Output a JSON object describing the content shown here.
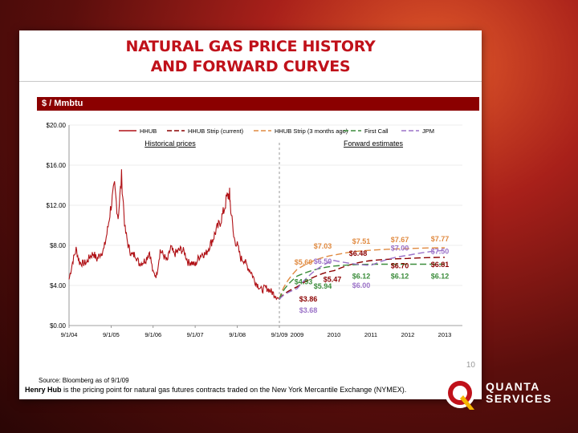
{
  "slide": {
    "title_line1": "NATURAL GAS PRICE HISTORY",
    "title_line2": "AND FORWARD CURVES",
    "unit_label": "$ / Mmbtu",
    "source": "Source: Bloomberg as of 9/1/09",
    "page_number": "10",
    "footnote_bold": "Henry Hub",
    "footnote_rest": " is the pricing point for natural gas futures contracts traded on the New York Mercantile Exchange (NYMEX).",
    "logo": {
      "line1": "QUANTA",
      "line2": "SERVICES"
    }
  },
  "chart_data": {
    "type": "line",
    "ylim": [
      0,
      20
    ],
    "yticks": [
      "$0.00",
      "$4.00",
      "$8.00",
      "$12.00",
      "$16.00",
      "$20.00"
    ],
    "ytick_values": [
      0,
      4,
      8,
      12,
      16,
      20
    ],
    "xticks_history": [
      "9/1/04",
      "9/1/05",
      "9/1/06",
      "9/1/07",
      "9/1/08",
      "9/1/09"
    ],
    "xticks_forward": [
      "2009",
      "2010",
      "2011",
      "2012",
      "2013"
    ],
    "region_labels": {
      "history": "Historical prices",
      "forward": "Forward estimates"
    },
    "legend_position": "top",
    "history": {
      "name": "HHUB",
      "color": "#b01116",
      "points": [
        [
          "9/1/04",
          4.6
        ],
        [
          "10/1/04",
          6.3
        ],
        [
          "11/1/04",
          7.6
        ],
        [
          "12/1/04",
          6.3
        ],
        [
          "1/1/05",
          6.2
        ],
        [
          "2/1/05",
          6.3
        ],
        [
          "3/1/05",
          6.9
        ],
        [
          "4/1/05",
          7.2
        ],
        [
          "5/1/05",
          6.6
        ],
        [
          "6/1/05",
          7.2
        ],
        [
          "7/1/05",
          7.6
        ],
        [
          "8/1/05",
          9.5
        ],
        [
          "9/1/05",
          12.0
        ],
        [
          "10/1/05",
          13.8
        ],
        [
          "11/1/05",
          10.8
        ],
        [
          "12/1/05",
          14.8
        ],
        [
          "1/1/06",
          9.5
        ],
        [
          "2/1/06",
          7.8
        ],
        [
          "3/1/06",
          7.0
        ],
        [
          "4/1/06",
          7.1
        ],
        [
          "5/1/06",
          6.2
        ],
        [
          "6/1/06",
          6.3
        ],
        [
          "7/1/06",
          6.6
        ],
        [
          "8/1/06",
          7.4
        ],
        [
          "9/1/06",
          5.2
        ],
        [
          "10/1/06",
          5.0
        ],
        [
          "11/1/06",
          7.5
        ],
        [
          "12/1/06",
          7.0
        ],
        [
          "1/1/07",
          6.4
        ],
        [
          "2/1/07",
          7.8
        ],
        [
          "3/1/07",
          7.1
        ],
        [
          "4/1/07",
          7.4
        ],
        [
          "5/1/07",
          7.6
        ],
        [
          "6/1/07",
          7.3
        ],
        [
          "7/1/07",
          6.3
        ],
        [
          "8/1/07",
          6.3
        ],
        [
          "9/1/07",
          6.0
        ],
        [
          "10/1/07",
          6.8
        ],
        [
          "11/1/07",
          7.2
        ],
        [
          "12/1/07",
          7.1
        ],
        [
          "1/1/08",
          7.9
        ],
        [
          "2/1/08",
          8.6
        ],
        [
          "3/1/08",
          9.5
        ],
        [
          "4/1/08",
          10.2
        ],
        [
          "5/1/08",
          11.2
        ],
        [
          "6/1/08",
          12.7
        ],
        [
          "6/25/08",
          13.2
        ],
        [
          "7/1/08",
          12.3
        ],
        [
          "8/1/08",
          8.8
        ],
        [
          "9/1/08",
          8.0
        ],
        [
          "10/1/08",
          6.7
        ],
        [
          "11/1/08",
          6.5
        ],
        [
          "12/1/08",
          5.8
        ],
        [
          "1/1/09",
          5.3
        ],
        [
          "2/1/09",
          4.4
        ],
        [
          "3/1/09",
          4.0
        ],
        [
          "4/1/09",
          3.5
        ],
        [
          "5/1/09",
          3.8
        ],
        [
          "6/1/09",
          3.6
        ],
        [
          "7/1/09",
          3.3
        ],
        [
          "8/1/09",
          3.0
        ],
        [
          "9/1/09",
          2.6
        ]
      ]
    },
    "forward_series": [
      {
        "name": "HHUB Strip (current)",
        "color": "#8b0000",
        "dash": "8,4",
        "values": [
          3.86,
          5.47,
          6.48,
          6.7,
          6.81
        ],
        "labels": [
          "$3.86",
          "$5.47",
          "$6.48",
          "$6.70",
          "$6.81"
        ]
      },
      {
        "name": "HHUB Strip (3 months ago)",
        "color": "#e08a40",
        "dash": "8,4",
        "values": [
          5.6,
          7.03,
          7.51,
          7.67,
          7.77
        ],
        "labels": [
          "$5.60",
          "$7.03",
          "$7.51",
          "$7.67",
          "$7.77"
        ]
      },
      {
        "name": "First Call",
        "color": "#3b8c3b",
        "dash": "8,4",
        "values": [
          4.93,
          5.94,
          6.12,
          6.12,
          6.12
        ],
        "labels": [
          "$4.93",
          "$5.94",
          "$6.12",
          "$6.12",
          "$6.12"
        ]
      },
      {
        "name": "JPM",
        "color": "#9b72c8",
        "dash": "8,4",
        "values": [
          3.68,
          6.5,
          6.0,
          7.0,
          7.5
        ],
        "labels": [
          "$3.68",
          "$6.50",
          "$6.00",
          "$7.00",
          "$7.50"
        ]
      }
    ]
  }
}
